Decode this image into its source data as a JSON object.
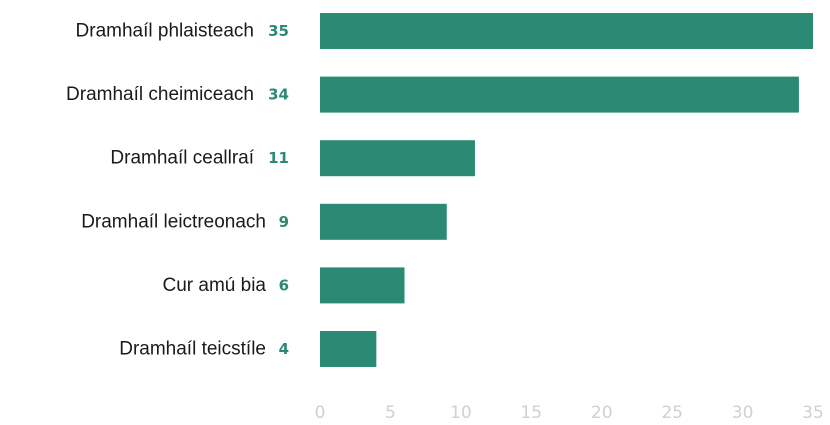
{
  "chart_data": {
    "type": "bar",
    "orientation": "horizontal",
    "title": "",
    "xlabel": "",
    "ylabel": "",
    "categories": [
      "Dramhaíl phlaisteach",
      "Dramhaíl cheimiceach",
      "Dramhaíl ceallraí",
      "Dramhaíl leictreonach",
      "Cur amú bia",
      "Dramhaíl teicstíle"
    ],
    "values": [
      35,
      34,
      11,
      9,
      6,
      4
    ],
    "xlim": [
      0,
      35
    ],
    "xticks": [
      0,
      5,
      10,
      15,
      20,
      25,
      30,
      35
    ],
    "grid": false,
    "legend": "none",
    "bar_color": "#2b8a73",
    "value_label_color": "#2b8a73",
    "tick_color": "#d0d0d0"
  }
}
